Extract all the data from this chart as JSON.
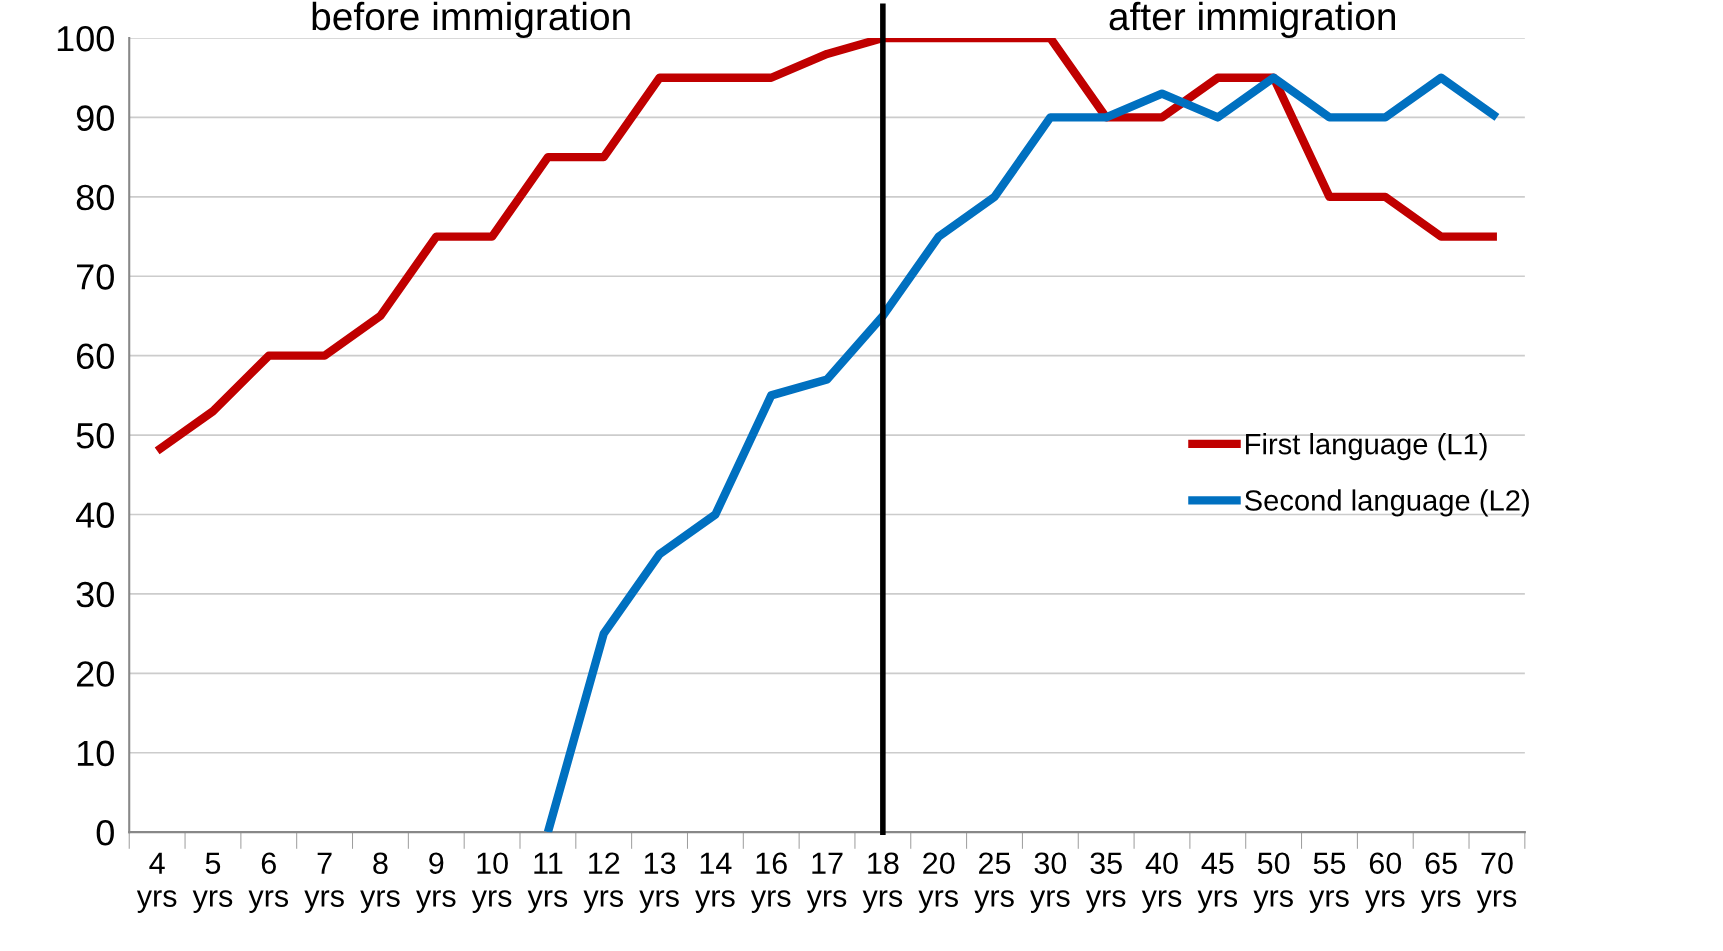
{
  "chart_data": {
    "type": "line",
    "categories": [
      "4 yrs",
      "5 yrs",
      "6 yrs",
      "7 yrs",
      "8 yrs",
      "9 yrs",
      "10 yrs",
      "11 yrs",
      "12 yrs",
      "13 yrs",
      "14 yrs",
      "16 yrs",
      "17 yrs",
      "18 yrs",
      "20 yrs",
      "25 yrs",
      "30 yrs",
      "35 yrs",
      "40 yrs",
      "45 yrs",
      "50 yrs",
      "55 yrs",
      "60 yrs",
      "65 yrs",
      "70 yrs"
    ],
    "series": [
      {
        "name": "First language (L1)",
        "color": "#c00000",
        "values": [
          48,
          53,
          60,
          60,
          65,
          75,
          75,
          85,
          85,
          95,
          95,
          95,
          98,
          100,
          100,
          100,
          100,
          90,
          90,
          95,
          95,
          80,
          80,
          75,
          75
        ]
      },
      {
        "name": "Second language (L2)",
        "color": "#0070c0",
        "values": [
          null,
          null,
          null,
          null,
          null,
          null,
          null,
          0,
          25,
          35,
          40,
          55,
          57,
          65,
          75,
          80,
          90,
          90,
          93,
          90,
          95,
          90,
          90,
          95,
          90
        ]
      }
    ],
    "ylim": [
      0,
      100
    ],
    "yticks": [
      0,
      10,
      20,
      30,
      40,
      50,
      60,
      70,
      80,
      90,
      100
    ],
    "grid": "y",
    "legend": "right",
    "marker": "none",
    "line_style": "solid",
    "ref_lines": [
      {
        "axis": "x",
        "value": "18 yrs",
        "color": "#000000"
      }
    ],
    "annotations": [
      "before immigration",
      "after immigration"
    ]
  }
}
